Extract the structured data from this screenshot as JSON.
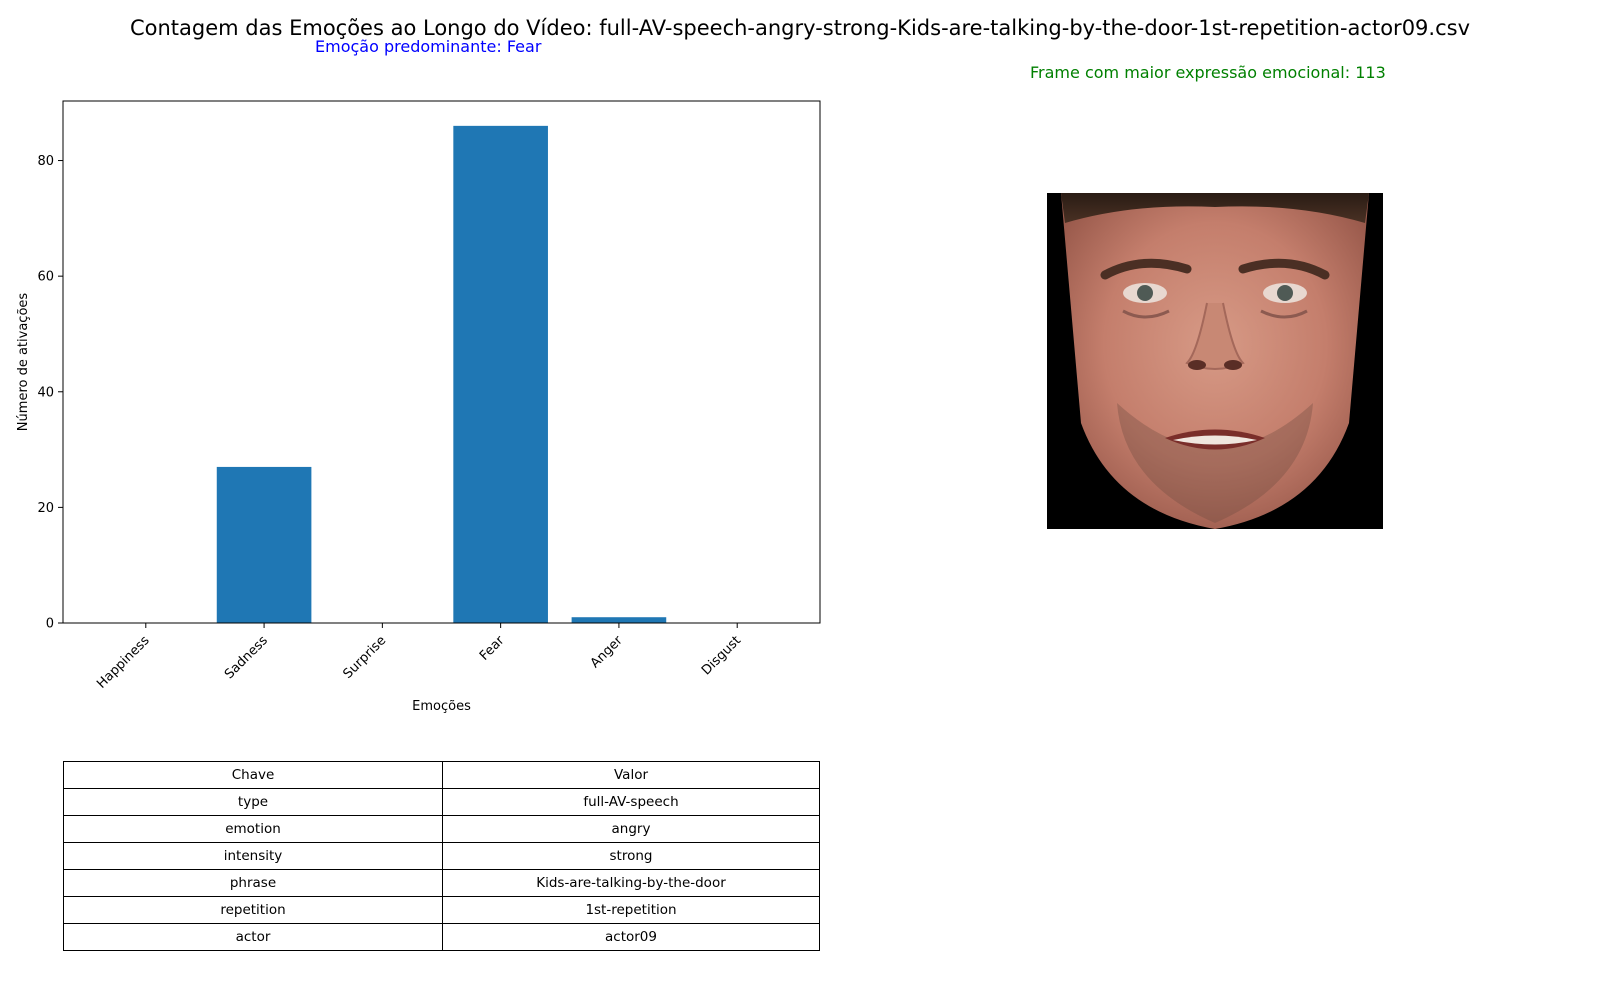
{
  "header": {
    "title": "Contagem das Emoções ao Longo do Vídeo: full-AV-speech-angry-strong-Kids-are-talking-by-the-door-1st-repetition-actor09.csv",
    "predominant": "Emoção predominante: Fear",
    "frame_label": "Frame com maior expressão emocional: 113"
  },
  "colors": {
    "bar": "#1f77b4",
    "predominant_text": "#0000ff",
    "frame_text": "#008000"
  },
  "chart_data": {
    "type": "bar",
    "title": "",
    "xlabel": "Emoções",
    "ylabel": "Número de ativações",
    "categories": [
      "Happiness",
      "Sadness",
      "Surprise",
      "Fear",
      "Anger",
      "Disgust"
    ],
    "values": [
      0,
      27,
      0,
      86,
      1,
      0
    ],
    "ylim": [
      0,
      90.3
    ],
    "yticks": [
      0,
      20,
      40,
      60,
      80
    ],
    "grid": false,
    "legend": "none"
  },
  "image": {
    "icon": "face-photo-icon"
  },
  "table": {
    "header": [
      "Chave",
      "Valor"
    ],
    "rows": [
      [
        "type",
        "full-AV-speech"
      ],
      [
        "emotion",
        "angry"
      ],
      [
        "intensity",
        "strong"
      ],
      [
        "phrase",
        "Kids-are-talking-by-the-door"
      ],
      [
        "repetition",
        "1st-repetition"
      ],
      [
        "actor",
        "actor09"
      ]
    ]
  }
}
